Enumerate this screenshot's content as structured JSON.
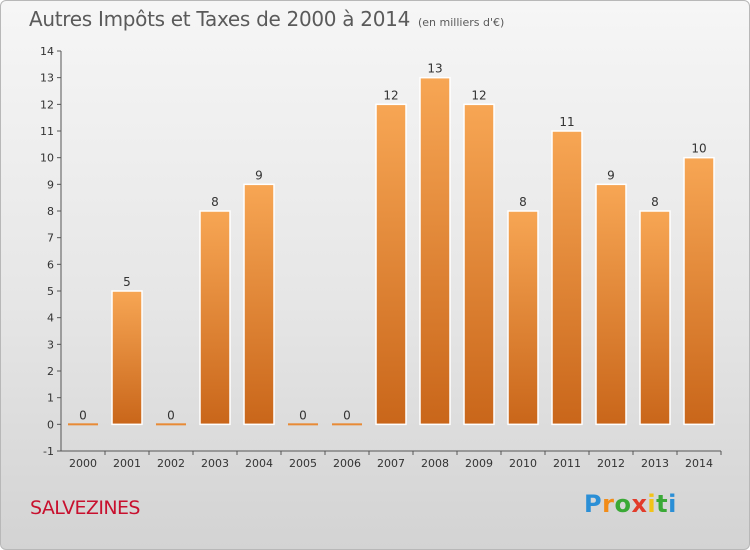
{
  "title": "Autres Impôts et Taxes de 2000 à 2014",
  "subtitle": "(en milliers d'€)",
  "place": "SALVEZINES",
  "logo": {
    "letters": [
      "P",
      "r",
      "o",
      "x",
      "i",
      "t",
      "i"
    ],
    "colors": [
      "#2b8fd6",
      "#f28c18",
      "#3aa936",
      "#e23b2a",
      "#f2c318",
      "#3aa936",
      "#2b8fd6"
    ]
  },
  "chart_data": {
    "type": "bar",
    "title": "Autres Impôts et Taxes de 2000 à 2014",
    "subtitle": "(en milliers d'€)",
    "categories": [
      "2000",
      "2001",
      "2002",
      "2003",
      "2004",
      "2005",
      "2006",
      "2007",
      "2008",
      "2009",
      "2010",
      "2011",
      "2012",
      "2013",
      "2014"
    ],
    "values": [
      0,
      5,
      0,
      8,
      9,
      0,
      0,
      12,
      13,
      12,
      8,
      11,
      9,
      8,
      10
    ],
    "data_labels": [
      "0",
      "5",
      "0",
      "8",
      "9",
      "0",
      "0",
      "12",
      "13",
      "12",
      "8",
      "11",
      "9",
      "8",
      "10"
    ],
    "yticks": [
      -1,
      0,
      1,
      2,
      3,
      4,
      5,
      6,
      7,
      8,
      9,
      10,
      11,
      12,
      13,
      14
    ],
    "ylim": [
      -1,
      14
    ],
    "xlabel": "",
    "ylabel": "",
    "grid": false,
    "legend": "none",
    "bar_color_top": "#f7a654",
    "bar_color_bottom": "#c9661a"
  }
}
